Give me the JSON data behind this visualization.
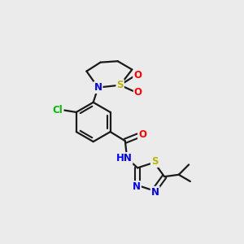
{
  "bg_color": "#ebebeb",
  "bond_color": "#1a1a1a",
  "colors": {
    "S": "#b8b800",
    "N": "#0000ff",
    "O": "#ff0000",
    "Cl": "#00bb00",
    "C": "#1a1a1a",
    "H": "#555555"
  }
}
